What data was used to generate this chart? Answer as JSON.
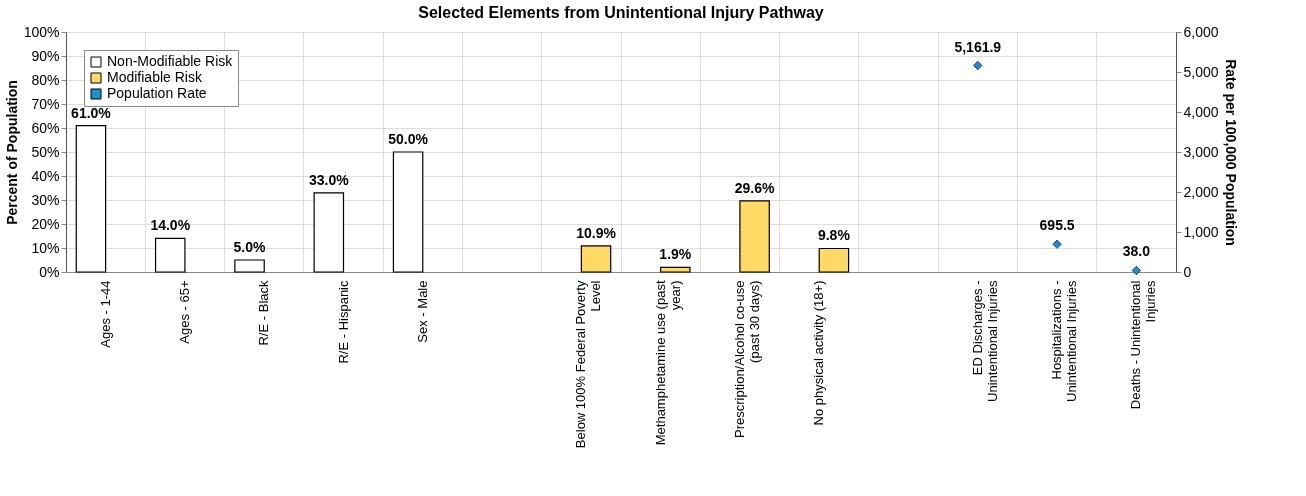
{
  "chart_data": {
    "type": "bar",
    "title": "Selected Elements from Unintentional Injury Pathway",
    "ylabel": "Percent of Population",
    "y2label": "Rate per 100,000 Population",
    "categories": [
      "Ages - 1-44",
      "Ages - 65+",
      "R/E - Black",
      "R/E - Hispanic",
      "Sex - Male",
      null,
      "Below 100% Federal Poverty Level",
      "Methamphetamine use (past year)",
      "Prescription/Alcohol co-use (past 30 days)",
      "No physical activity (18+)",
      null,
      "ED Discharges - Unintentional Injuries",
      "Hospitalizations - Unintentional Injuries",
      "Deaths - Unintentional Injuries"
    ],
    "series": [
      {
        "name": "Non-Modifiable Risk",
        "color": "#ffffff",
        "values": [
          61.0,
          14.0,
          5.0,
          33.0,
          50.0,
          null,
          null,
          null,
          null,
          null,
          null,
          null,
          null,
          null
        ],
        "value_labels": [
          "61.0%",
          "14.0%",
          "5.0%",
          "33.0%",
          "50.0%",
          null,
          null,
          null,
          null,
          null,
          null,
          null,
          null,
          null
        ]
      },
      {
        "name": "Modifiable Risk",
        "color": "#ffd966",
        "values": [
          null,
          null,
          null,
          null,
          null,
          null,
          10.9,
          1.9,
          29.6,
          9.8,
          null,
          null,
          null,
          null
        ],
        "value_labels": [
          null,
          null,
          null,
          null,
          null,
          null,
          "10.9%",
          "1.9%",
          "29.6%",
          "9.8%",
          null,
          null,
          null,
          null
        ]
      },
      {
        "name": "Population Rate",
        "type": "scatter",
        "axis": "y2",
        "marker": "diamond",
        "color": "#1f8fc8",
        "values": [
          null,
          null,
          null,
          null,
          null,
          null,
          null,
          null,
          null,
          null,
          null,
          5161.9,
          695.5,
          38.0
        ],
        "value_labels": [
          null,
          null,
          null,
          null,
          null,
          null,
          null,
          null,
          null,
          null,
          null,
          "5,161.9",
          "695.5",
          "38.0"
        ]
      }
    ],
    "ylim": [
      0,
      100
    ],
    "yticks": [
      {
        "value": 0,
        "label": "0%"
      },
      {
        "value": 10,
        "label": "10%"
      },
      {
        "value": 20,
        "label": "20%"
      },
      {
        "value": 30,
        "label": "30%"
      },
      {
        "value": 40,
        "label": "40%"
      },
      {
        "value": 50,
        "label": "50%"
      },
      {
        "value": 60,
        "label": "60%"
      },
      {
        "value": 70,
        "label": "70%"
      },
      {
        "value": 80,
        "label": "80%"
      },
      {
        "value": 90,
        "label": "90%"
      },
      {
        "value": 100,
        "label": "100%"
      }
    ],
    "y2lim": [
      0,
      6000
    ],
    "y2ticks": [
      0,
      {
        "value": 1000,
        "label": "1,000"
      },
      {
        "value": 2000,
        "label": "2,000"
      },
      {
        "value": 3000,
        "label": "3,000"
      },
      {
        "value": 4000,
        "label": "4,000"
      },
      {
        "value": 5000,
        "label": "5,000"
      },
      {
        "value": 6000,
        "label": "6,000"
      }
    ],
    "grid": true,
    "legend": "top left"
  }
}
